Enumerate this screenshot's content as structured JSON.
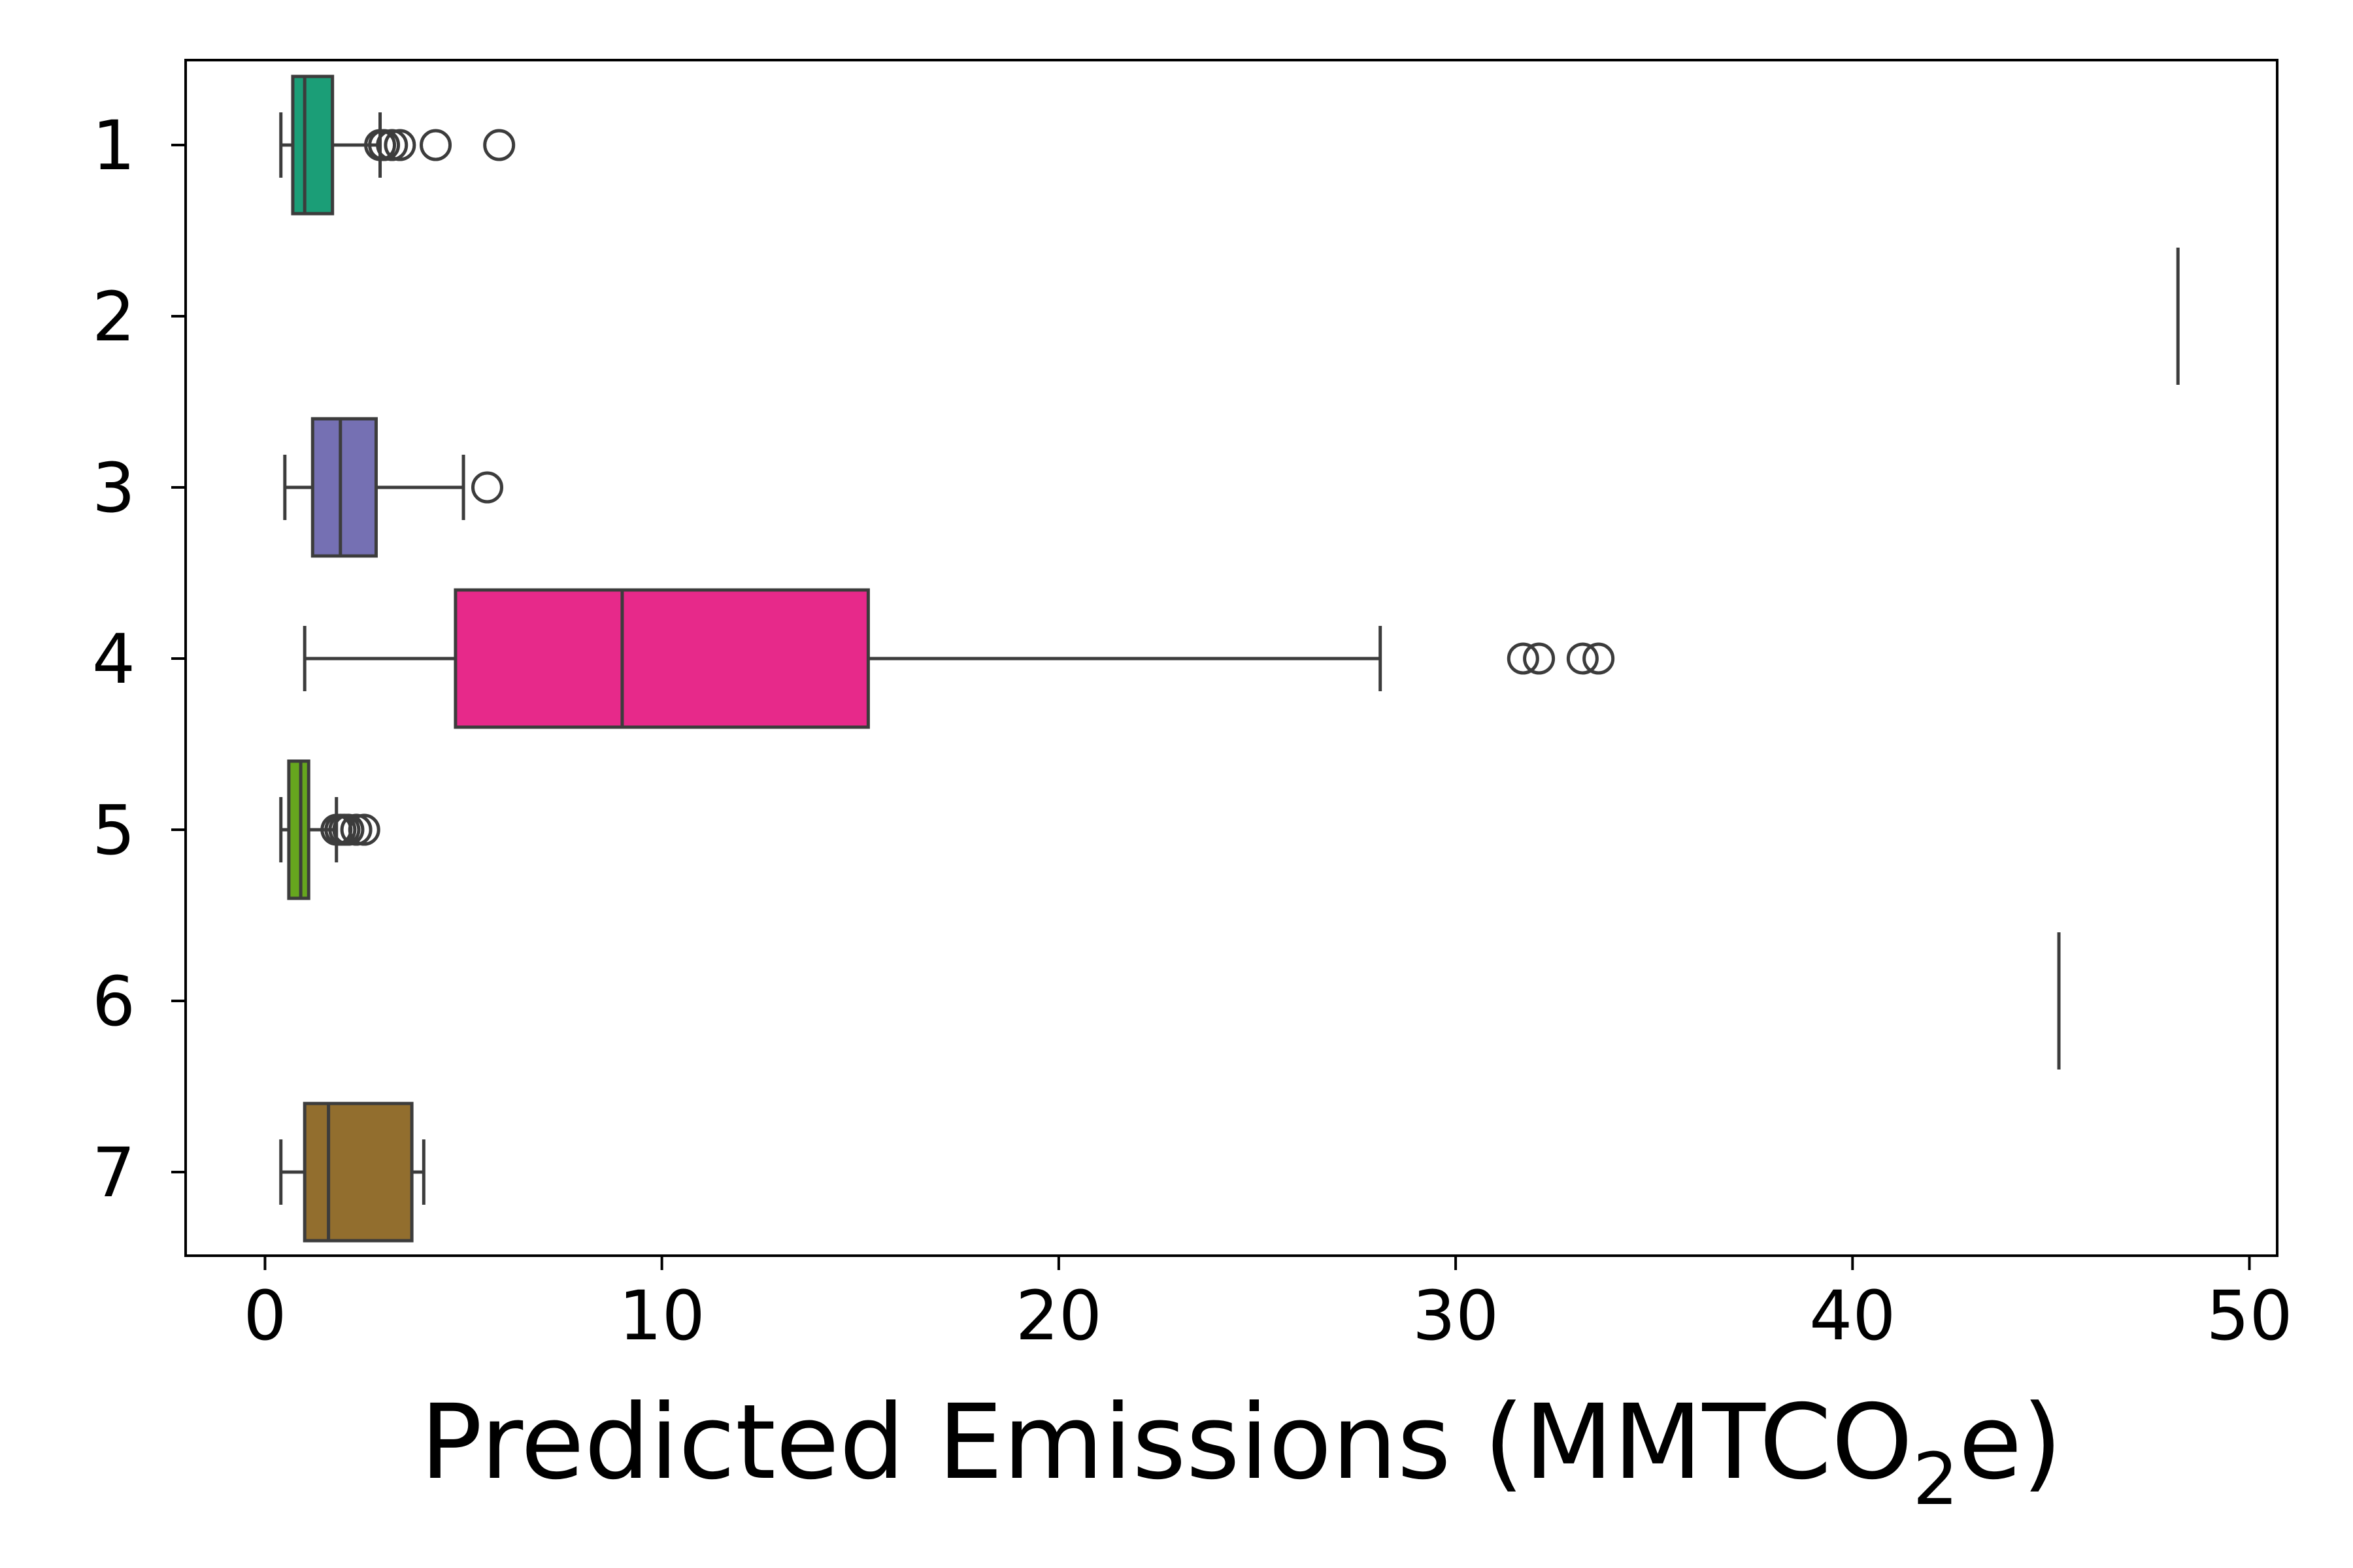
{
  "chart_data": {
    "type": "boxplot",
    "orientation": "horizontal",
    "title": "",
    "xlabel": {
      "prefix": "Predicted Emissions (MMTCO",
      "subscript": "2",
      "suffix": "e)"
    },
    "ylabel": "",
    "xlim": [
      -2,
      50.7
    ],
    "xticks": [
      0,
      10,
      20,
      30,
      40,
      50
    ],
    "xtick_labels": [
      "0",
      "10",
      "20",
      "30",
      "40",
      "50"
    ],
    "grid": false,
    "categories": [
      "1",
      "2",
      "3",
      "4",
      "5",
      "6",
      "7"
    ],
    "series": [
      {
        "category": "1",
        "color": "#1b9e77",
        "whisker_low": 0.4,
        "q1": 0.7,
        "median": 1.0,
        "q3": 1.7,
        "whisker_high": 2.9,
        "outliers": [
          2.9,
          3.0,
          3.2,
          3.4,
          4.3,
          5.9
        ]
      },
      {
        "category": "2",
        "color": "#d95f02",
        "whisker_low": 48.2,
        "q1": 48.2,
        "median": 48.2,
        "q3": 48.2,
        "whisker_high": 48.2,
        "outliers": []
      },
      {
        "category": "3",
        "color": "#7570b3",
        "whisker_low": 0.5,
        "q1": 1.2,
        "median": 1.9,
        "q3": 2.8,
        "whisker_high": 5.0,
        "outliers": [
          5.6
        ]
      },
      {
        "category": "4",
        "color": "#e7298a",
        "whisker_low": 1.0,
        "q1": 4.8,
        "median": 9.0,
        "q3": 15.2,
        "whisker_high": 28.1,
        "outliers": [
          31.7,
          32.1,
          33.2,
          33.6
        ]
      },
      {
        "category": "5",
        "color": "#66a61e",
        "whisker_low": 0.4,
        "q1": 0.6,
        "median": 0.9,
        "q3": 1.1,
        "whisker_high": 1.8,
        "outliers": [
          1.8,
          1.9,
          2.0,
          2.1,
          2.3,
          2.5
        ]
      },
      {
        "category": "6",
        "color": "#e6ab02",
        "whisker_low": 45.2,
        "q1": 45.2,
        "median": 45.2,
        "q3": 45.2,
        "whisker_high": 45.2,
        "outliers": []
      },
      {
        "category": "7",
        "color": "#926e2e",
        "whisker_low": 0.4,
        "q1": 1.0,
        "median": 1.6,
        "q3": 3.7,
        "whisker_high": 4.0,
        "outliers": []
      }
    ]
  }
}
